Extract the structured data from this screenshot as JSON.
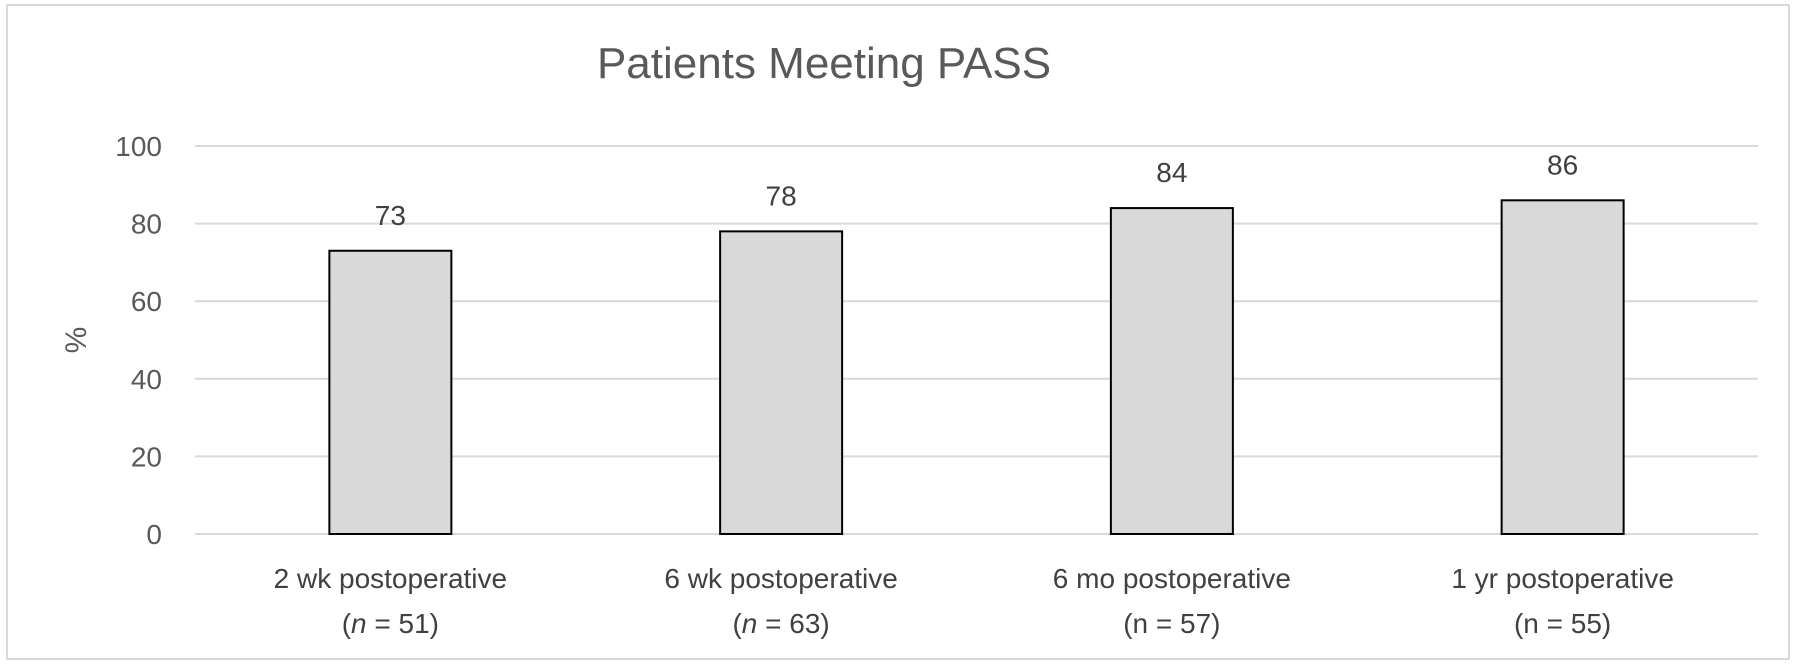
{
  "chart_data": {
    "type": "bar",
    "title": "Patients Meeting PASS",
    "ylabel": "%",
    "xlabel": "",
    "ylim": [
      0,
      100
    ],
    "yticks": [
      0,
      20,
      40,
      60,
      80,
      100
    ],
    "grid": true,
    "categories": [
      {
        "line1": "2 wk postoperative",
        "n_prefix": "(",
        "n_var": "n",
        "n_suffix": " = 51)"
      },
      {
        "line1": "6 wk postoperative",
        "n_prefix": "(",
        "n_var": "n",
        "n_suffix": " =  63)"
      },
      {
        "line1": "6 mo postoperative",
        "n_prefix": "",
        "n_var": "",
        "n_suffix": "(n = 57)"
      },
      {
        "line1": "1 yr postoperative",
        "n_prefix": "",
        "n_var": "",
        "n_suffix": "(n = 55)"
      }
    ],
    "values": [
      73,
      78,
      84,
      86
    ],
    "data_labels": [
      "73",
      "78",
      "84",
      "86"
    ],
    "colors": {
      "bar_fill": "#d9d9d9",
      "bar_stroke": "#000000",
      "grid": "#d9d9d9"
    }
  }
}
